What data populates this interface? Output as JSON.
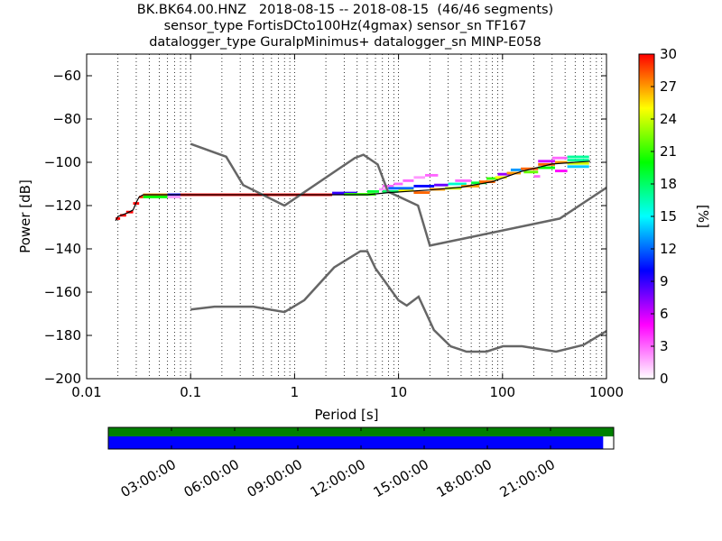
{
  "title_lines": [
    "BK.BK64.00.HNZ   2018-08-15 -- 2018-08-15  (46/46 segments)",
    "sensor_type FortisDCto100Hz(4gmax) sensor_sn TF167",
    "datalogger_type GuralpMinimus+ datalogger_sn MINP-E058"
  ],
  "chart_data": {
    "type": "heatmap",
    "xlabel": "Period [s]",
    "ylabel": "Power [dB]",
    "xscale": "log",
    "xlim": [
      0.01,
      1000
    ],
    "ylim": [
      -200,
      -50
    ],
    "x_ticks": [
      0.01,
      0.1,
      1,
      10,
      100,
      1000
    ],
    "x_tick_labels": [
      "0.01",
      "0.1",
      "1",
      "10",
      "100",
      "1000"
    ],
    "y_ticks": [
      -200,
      -180,
      -160,
      -140,
      -120,
      -100,
      -80,
      -60
    ],
    "y_tick_labels": [
      "−200",
      "−180",
      "−160",
      "−140",
      "−120",
      "−100",
      "−80",
      "−60"
    ],
    "grid": "dotted vertical at log minor ticks",
    "colorbar": {
      "label": "[%]",
      "min": 0,
      "max": 30,
      "ticks": [
        0,
        3,
        6,
        9,
        12,
        15,
        18,
        21,
        24,
        27,
        30
      ],
      "tick_labels": [
        "0",
        "3",
        "6",
        "9",
        "12",
        "15",
        "18",
        "21",
        "24",
        "27",
        "30"
      ],
      "colormap": [
        "#ffffff",
        "#ff00ff",
        "#0000ff",
        "#00ffff",
        "#00ff00",
        "#ffff00",
        "#ff0000"
      ]
    },
    "noise_models": [
      {
        "name": "NHNM",
        "color": "#666666",
        "points": [
          [
            0.1,
            -91.5
          ],
          [
            0.22,
            -97.4
          ],
          [
            0.32,
            -110.5
          ],
          [
            0.8,
            -120
          ],
          [
            3.8,
            -98
          ],
          [
            4.6,
            -96.5
          ],
          [
            6.3,
            -101
          ],
          [
            7.9,
            -113.5
          ],
          [
            15.4,
            -120
          ],
          [
            20,
            -138.5
          ],
          [
            354.8,
            -126
          ],
          [
            10000,
            -80
          ]
        ]
      },
      {
        "name": "NLNM",
        "color": "#666666",
        "points": [
          [
            0.1,
            -168
          ],
          [
            0.17,
            -166.7
          ],
          [
            0.4,
            -166.7
          ],
          [
            0.8,
            -169.2
          ],
          [
            1.24,
            -163.7
          ],
          [
            2.4,
            -148.6
          ],
          [
            4.3,
            -141.1
          ],
          [
            5,
            -141.1
          ],
          [
            6,
            -149
          ],
          [
            10,
            -163.8
          ],
          [
            12,
            -166.2
          ],
          [
            15.6,
            -162.1
          ],
          [
            21.9,
            -177.5
          ],
          [
            31.6,
            -185
          ],
          [
            45,
            -187.5
          ],
          [
            70,
            -187.5
          ],
          [
            101,
            -185
          ],
          [
            154,
            -185
          ],
          [
            328,
            -187.5
          ],
          [
            600,
            -184.4
          ],
          [
            1000,
            -178
          ]
        ]
      }
    ],
    "mean_psd": [
      [
        0.019,
        -127
      ],
      [
        0.02,
        -125
      ],
      [
        0.022,
        -124.3
      ],
      [
        0.025,
        -123.3
      ],
      [
        0.028,
        -122
      ],
      [
        0.03,
        -118.5
      ],
      [
        0.032,
        -116
      ],
      [
        0.035,
        -115
      ],
      [
        0.05,
        -115
      ],
      [
        0.1,
        -115
      ],
      [
        1,
        -115
      ],
      [
        5,
        -115
      ],
      [
        8,
        -114
      ],
      [
        20,
        -112.8
      ],
      [
        40,
        -111.5
      ],
      [
        80,
        -109
      ],
      [
        150,
        -104.3
      ],
      [
        300,
        -100.8
      ],
      [
        700,
        -99.5
      ]
    ],
    "psd_cells": [
      {
        "x0": 0.019,
        "x1": 0.021,
        "y": -126,
        "pct": 30
      },
      {
        "x0": 0.021,
        "x1": 0.024,
        "y": -124.5,
        "pct": 30
      },
      {
        "x0": 0.024,
        "x1": 0.028,
        "y": -123,
        "pct": 30
      },
      {
        "x0": 0.028,
        "x1": 0.032,
        "y": -119,
        "pct": 30
      },
      {
        "x0": 0.032,
        "x1": 0.035,
        "y": -116,
        "pct": 29
      },
      {
        "x0": 0.035,
        "x1": 0.06,
        "y": -115,
        "pct": 27
      },
      {
        "x0": 0.035,
        "x1": 0.06,
        "y": -116,
        "pct": 20
      },
      {
        "x0": 0.06,
        "x1": 0.08,
        "y": -115,
        "pct": 10
      },
      {
        "x0": 0.06,
        "x1": 0.08,
        "y": -116,
        "pct": 2
      },
      {
        "x0": 0.08,
        "x1": 2.3,
        "y": -115,
        "pct": 30
      },
      {
        "x0": 2.3,
        "x1": 4,
        "y": -114.2,
        "pct": 9
      },
      {
        "x0": 3,
        "x1": 6,
        "y": -114.8,
        "pct": 21
      },
      {
        "x0": 5,
        "x1": 6.5,
        "y": -113.5,
        "pct": 19
      },
      {
        "x0": 6.5,
        "x1": 8,
        "y": -112.5,
        "pct": 2
      },
      {
        "x0": 7,
        "x1": 9,
        "y": -111,
        "pct": 3
      },
      {
        "x0": 9,
        "x1": 11,
        "y": -110,
        "pct": 3
      },
      {
        "x0": 11,
        "x1": 14,
        "y": -108.5,
        "pct": 3
      },
      {
        "x0": 14,
        "x1": 18,
        "y": -107,
        "pct": 2
      },
      {
        "x0": 18,
        "x1": 24,
        "y": -106,
        "pct": 3
      },
      {
        "x0": 7,
        "x1": 10,
        "y": -113.5,
        "pct": 18
      },
      {
        "x0": 10,
        "x1": 14,
        "y": -113,
        "pct": 25
      },
      {
        "x0": 14,
        "x1": 20,
        "y": -114,
        "pct": 28
      },
      {
        "x0": 8,
        "x1": 14,
        "y": -112,
        "pct": 12
      },
      {
        "x0": 14,
        "x1": 22,
        "y": -111,
        "pct": 10
      },
      {
        "x0": 20,
        "x1": 28,
        "y": -112.5,
        "pct": 27
      },
      {
        "x0": 22,
        "x1": 30,
        "y": -110.5,
        "pct": 8
      },
      {
        "x0": 28,
        "x1": 40,
        "y": -112,
        "pct": 24
      },
      {
        "x0": 30,
        "x1": 45,
        "y": -110,
        "pct": 16
      },
      {
        "x0": 35,
        "x1": 50,
        "y": -108.5,
        "pct": 3
      },
      {
        "x0": 40,
        "x1": 60,
        "y": -111,
        "pct": 27
      },
      {
        "x0": 50,
        "x1": 70,
        "y": -109.5,
        "pct": 19
      },
      {
        "x0": 60,
        "x1": 85,
        "y": -109,
        "pct": 28
      },
      {
        "x0": 70,
        "x1": 90,
        "y": -107.5,
        "pct": 21
      },
      {
        "x0": 85,
        "x1": 110,
        "y": -107,
        "pct": 25
      },
      {
        "x0": 90,
        "x1": 120,
        "y": -105.5,
        "pct": 7
      },
      {
        "x0": 110,
        "x1": 150,
        "y": -105,
        "pct": 27
      },
      {
        "x0": 120,
        "x1": 160,
        "y": -103.5,
        "pct": 13
      },
      {
        "x0": 150,
        "x1": 220,
        "y": -103,
        "pct": 28
      },
      {
        "x0": 160,
        "x1": 220,
        "y": -104.5,
        "pct": 22
      },
      {
        "x0": 200,
        "x1": 230,
        "y": -106.5,
        "pct": 3
      },
      {
        "x0": 220,
        "x1": 320,
        "y": -101,
        "pct": 28
      },
      {
        "x0": 220,
        "x1": 320,
        "y": -102.5,
        "pct": 20
      },
      {
        "x0": 220,
        "x1": 320,
        "y": -99.5,
        "pct": 6
      },
      {
        "x0": 300,
        "x1": 420,
        "y": -98,
        "pct": 3
      },
      {
        "x0": 320,
        "x1": 420,
        "y": -100,
        "pct": 27
      },
      {
        "x0": 320,
        "x1": 420,
        "y": -104,
        "pct": 5
      },
      {
        "x0": 420,
        "x1": 680,
        "y": -97.5,
        "pct": 17
      },
      {
        "x0": 420,
        "x1": 680,
        "y": -99,
        "pct": 17
      },
      {
        "x0": 420,
        "x1": 680,
        "y": -100.5,
        "pct": 24
      },
      {
        "x0": 420,
        "x1": 680,
        "y": -102,
        "pct": 14
      }
    ],
    "timeline": {
      "start_hour": 0,
      "end_hour": 24,
      "tick_hours": [
        3,
        6,
        9,
        12,
        15,
        18,
        21
      ],
      "tick_labels": [
        "03:00:00",
        "06:00:00",
        "09:00:00",
        "12:00:00",
        "15:00:00",
        "18:00:00",
        "21:00:00"
      ],
      "rows": [
        {
          "color": "#008000",
          "from_hour": 0,
          "to_hour": 24
        },
        {
          "color": "#0000ff",
          "from_hour": 0,
          "to_hour": 23.5
        }
      ]
    }
  }
}
